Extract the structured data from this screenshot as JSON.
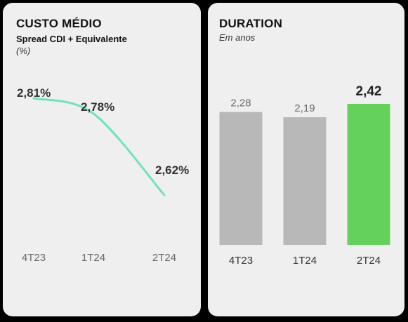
{
  "colors": {
    "background": "#000000",
    "panel": "#efefef",
    "line": "#6ee3b9",
    "bar_gray": "#b8b8b8",
    "bar_highlight": "#64d25a",
    "text_dark": "#333333",
    "text_gray": "#6b6b6b"
  },
  "left": {
    "title": "CUSTO MÉDIO",
    "subtitle": "Spread CDI + Equivalente",
    "unit": "(%)"
  },
  "right": {
    "title": "DURATION",
    "subtitle": "Em anos"
  },
  "chart_data": [
    {
      "type": "line",
      "title": "CUSTO MÉDIO",
      "subtitle": "Spread CDI + Equivalente",
      "unit": "(%)",
      "categories": [
        "4T23",
        "1T24",
        "2T24"
      ],
      "series": [
        {
          "values": [
            2.81,
            2.78,
            2.62
          ],
          "labels": [
            "2,81%",
            "2,78%",
            "2,62%"
          ]
        }
      ],
      "ylim": [
        2.55,
        2.85
      ],
      "grid": false,
      "legend": "none"
    },
    {
      "type": "bar",
      "title": "DURATION",
      "subtitle": "Em anos",
      "categories": [
        "4T23",
        "1T24",
        "2T24"
      ],
      "values": [
        2.28,
        2.19,
        2.42
      ],
      "labels": [
        "2,28",
        "2,19",
        "2,42"
      ],
      "highlight_index": 2,
      "ylim": [
        0,
        2.42
      ],
      "grid": false,
      "legend": "none"
    }
  ]
}
